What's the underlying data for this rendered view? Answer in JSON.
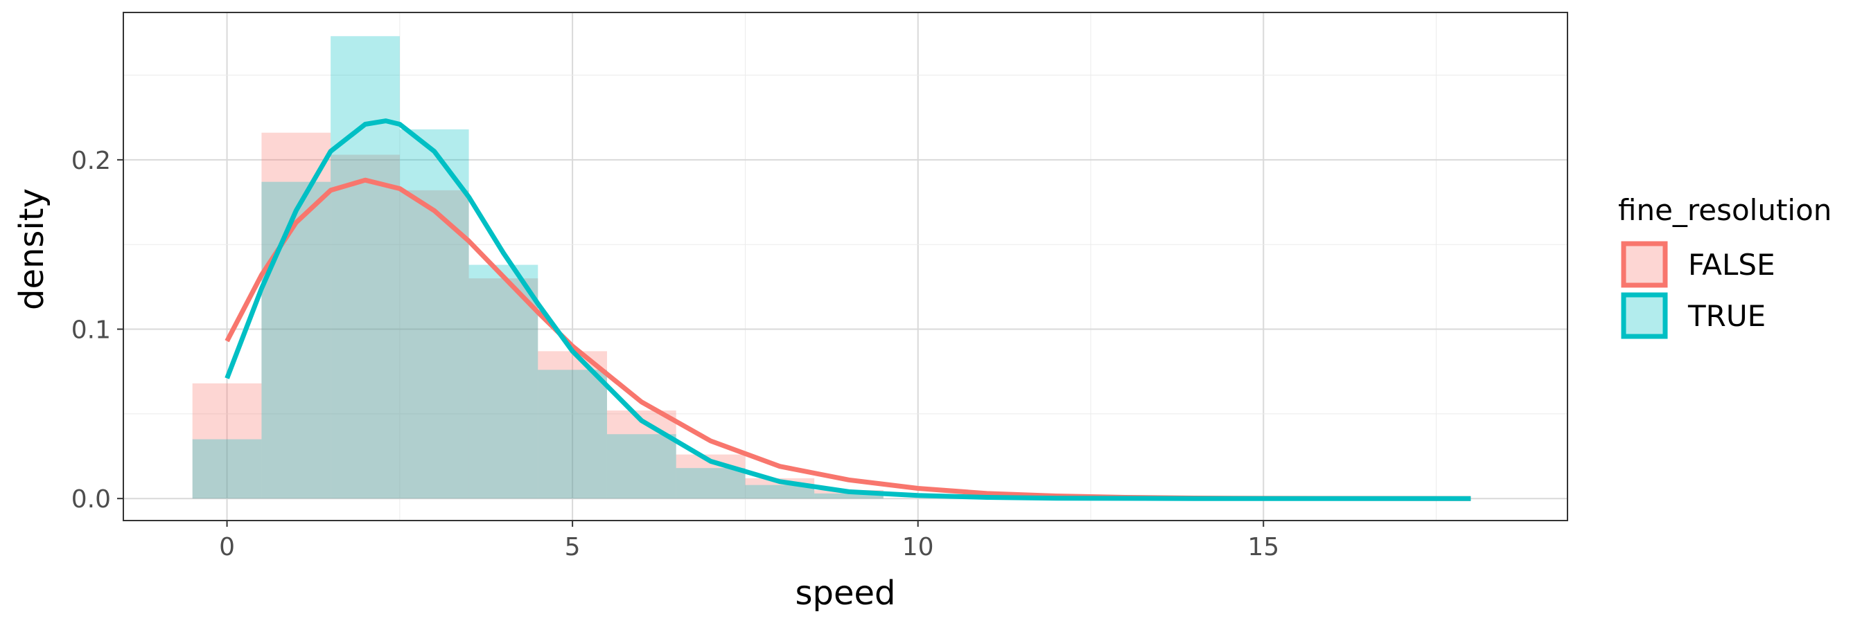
{
  "chart_data": {
    "type": "bar",
    "subtype": "histogram-with-density",
    "xlabel": "speed",
    "ylabel": "density",
    "xlim": [
      -1.5,
      19.4
    ],
    "ylim": [
      -0.013,
      0.287
    ],
    "x_ticks": [
      0,
      5,
      10,
      15
    ],
    "x_tick_labels": [
      "0",
      "5",
      "10",
      "15"
    ],
    "y_ticks": [
      0.0,
      0.1,
      0.2
    ],
    "y_tick_labels": [
      "0.0",
      "0.1",
      "0.2"
    ],
    "grid": true,
    "legend": {
      "title": "fine_resolution",
      "position": "right",
      "entries": [
        "FALSE",
        "TRUE"
      ]
    },
    "bins": [
      [
        -0.5,
        0.5
      ],
      [
        0.5,
        1.5
      ],
      [
        1.5,
        2.5
      ],
      [
        2.5,
        3.5
      ],
      [
        3.5,
        4.5
      ],
      [
        4.5,
        5.5
      ],
      [
        5.5,
        6.5
      ],
      [
        6.5,
        7.5
      ],
      [
        7.5,
        8.5
      ],
      [
        8.5,
        9.5
      ]
    ],
    "series": [
      {
        "name": "FALSE",
        "color": "#F8766D",
        "fill": "#F8766D",
        "histogram": [
          0.068,
          0.216,
          0.203,
          0.182,
          0.13,
          0.087,
          0.052,
          0.026,
          0.012,
          0.005
        ],
        "density_curve": [
          [
            0,
            0.093
          ],
          [
            0.5,
            0.132
          ],
          [
            1,
            0.163
          ],
          [
            1.5,
            0.182
          ],
          [
            2,
            0.188
          ],
          [
            2.5,
            0.183
          ],
          [
            3,
            0.17
          ],
          [
            3.5,
            0.152
          ],
          [
            4,
            0.131
          ],
          [
            4.5,
            0.11
          ],
          [
            5,
            0.09
          ],
          [
            6,
            0.057
          ],
          [
            7,
            0.034
          ],
          [
            8,
            0.019
          ],
          [
            9,
            0.011
          ],
          [
            10,
            0.006
          ],
          [
            11,
            0.003
          ],
          [
            12,
            0.0015
          ],
          [
            13,
            0.0007
          ],
          [
            14,
            0.0003
          ],
          [
            15,
            0.0001
          ],
          [
            18,
            0.0
          ]
        ]
      },
      {
        "name": "TRUE",
        "color": "#00BFC4",
        "fill": "#00BFC4",
        "histogram": [
          0.035,
          0.187,
          0.273,
          0.218,
          0.138,
          0.076,
          0.038,
          0.018,
          0.008,
          0.003
        ],
        "density_curve": [
          [
            0,
            0.071
          ],
          [
            0.5,
            0.124
          ],
          [
            1,
            0.17
          ],
          [
            1.5,
            0.205
          ],
          [
            2,
            0.221
          ],
          [
            2.3,
            0.223
          ],
          [
            2.5,
            0.221
          ],
          [
            3,
            0.205
          ],
          [
            3.5,
            0.178
          ],
          [
            4,
            0.145
          ],
          [
            4.5,
            0.115
          ],
          [
            5,
            0.087
          ],
          [
            6,
            0.046
          ],
          [
            7,
            0.022
          ],
          [
            8,
            0.01
          ],
          [
            9,
            0.004
          ],
          [
            10,
            0.0018
          ],
          [
            11,
            0.0007
          ],
          [
            12,
            0.0002
          ],
          [
            14,
            0.0
          ],
          [
            18,
            0.0
          ]
        ]
      }
    ]
  }
}
